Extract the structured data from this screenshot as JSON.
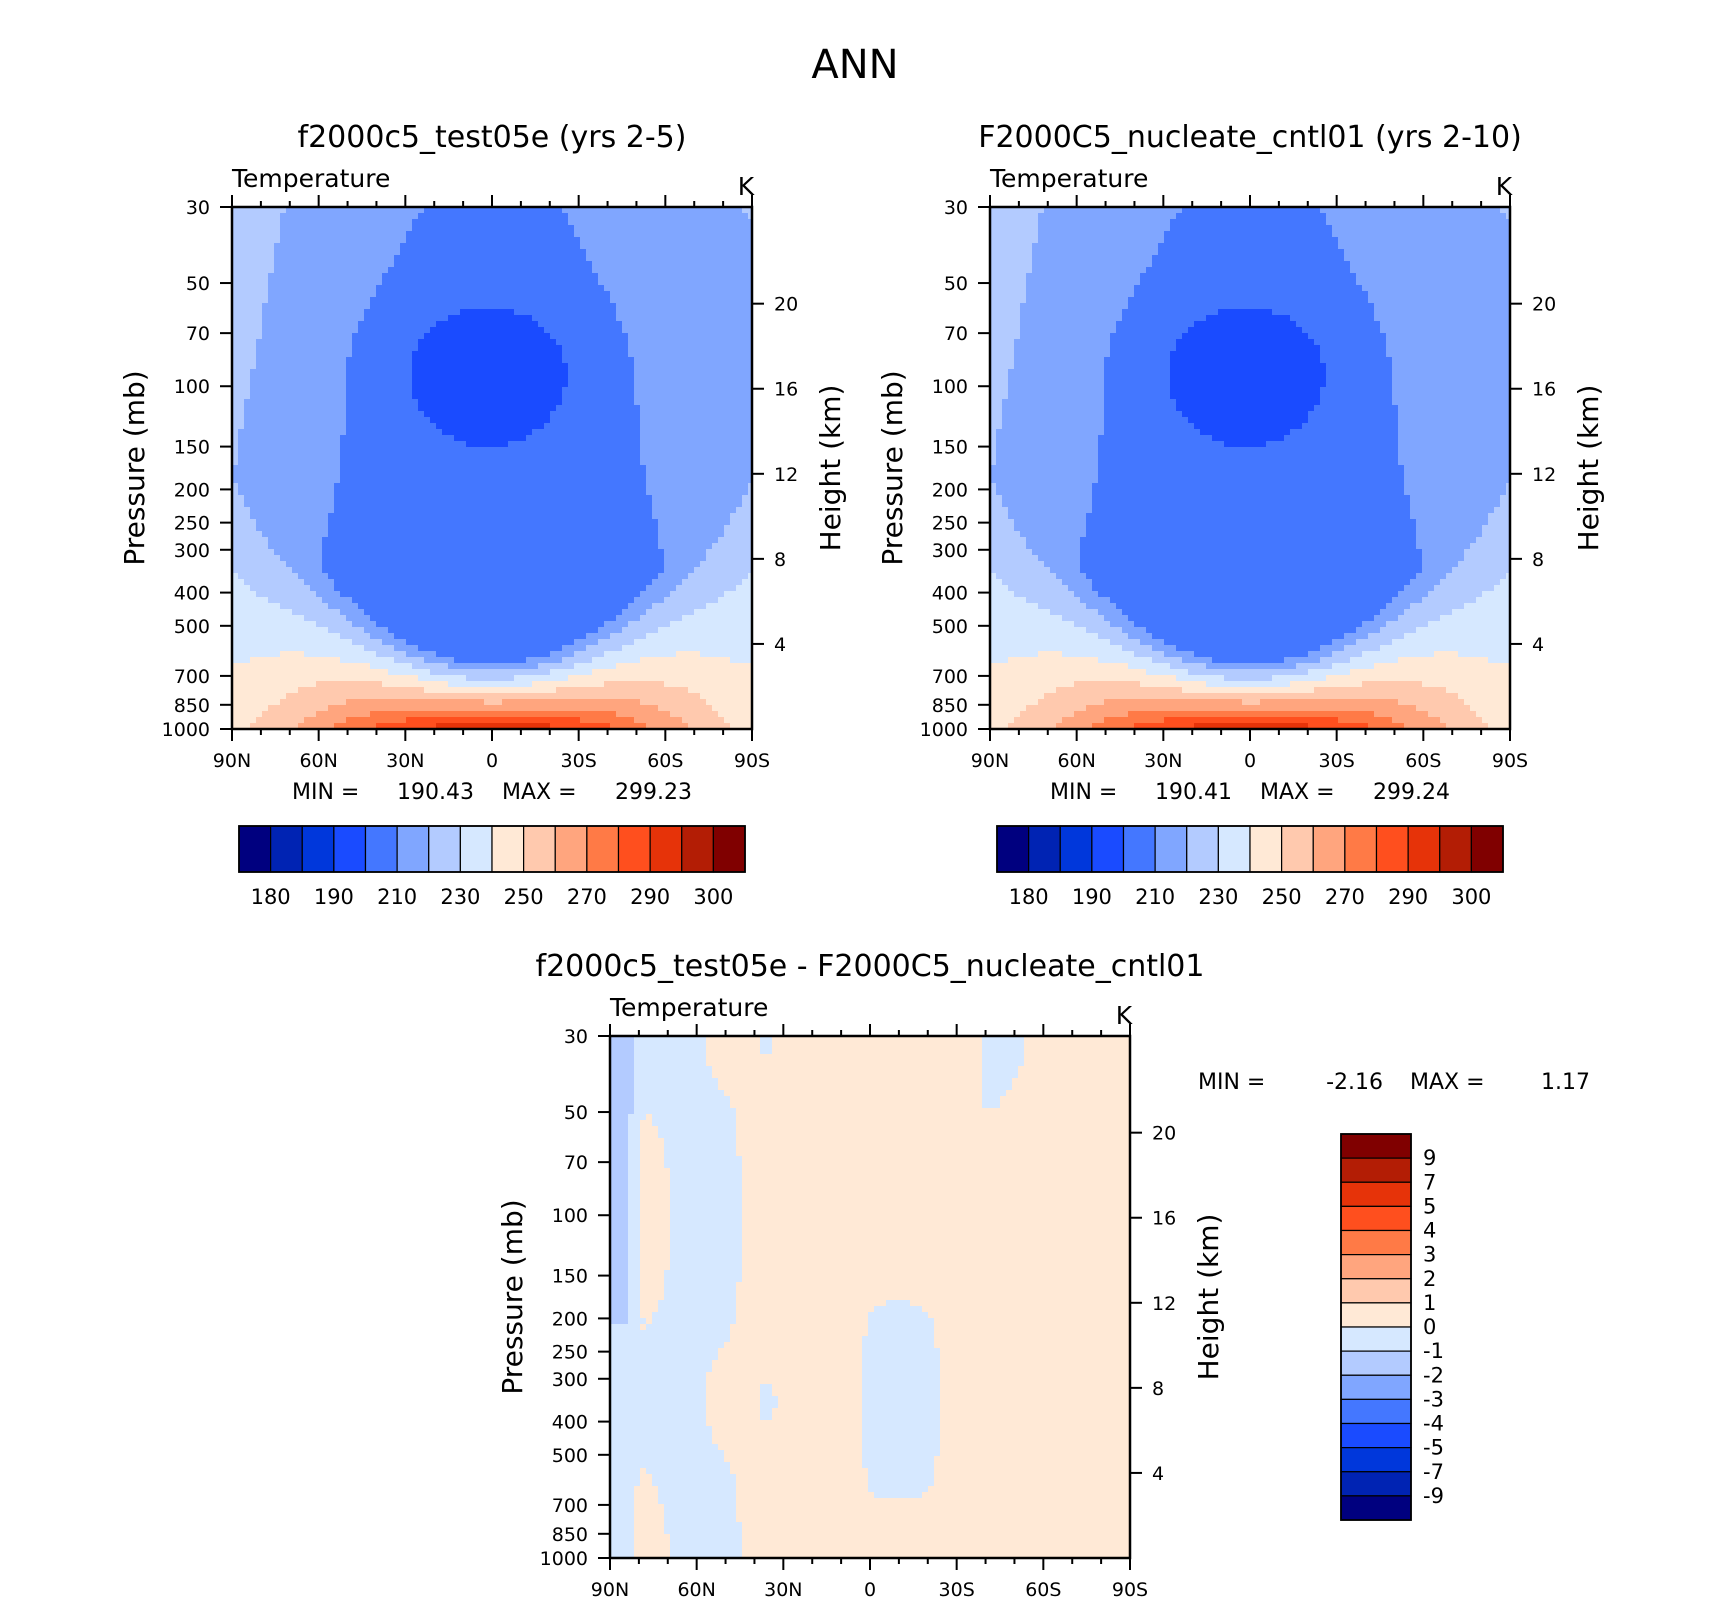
{
  "page_title": "ANN",
  "palettes": {
    "abs": [
      "#00007f",
      "#0023b3",
      "#0037db",
      "#1a4bff",
      "#4477ff",
      "#80a6ff",
      "#b3cbff",
      "#d6e8ff",
      "#ffe9d6",
      "#ffc9ae",
      "#ffa57e",
      "#ff7a46",
      "#ff4f1e",
      "#e63309",
      "#b31d05",
      "#800000"
    ],
    "diff": [
      "#00007f",
      "#0023b3",
      "#0037db",
      "#1a4bff",
      "#4477ff",
      "#80a6ff",
      "#b3cbff",
      "#d6e8ff",
      "#ffe9d6",
      "#ffc9ae",
      "#ffa57e",
      "#ff7a46",
      "#ff4f1e",
      "#e63309",
      "#b31d05",
      "#800000"
    ]
  },
  "chart_data": [
    {
      "type": "heatmap",
      "title": "f2000c5_test05e (yrs 2-5)",
      "variable": "Temperature",
      "units": "K",
      "xlabel": "",
      "ylabel": "Pressure (mb)",
      "y2label": "Height (km)",
      "x_ticks": [
        "90N",
        "60N",
        "30N",
        "0",
        "30S",
        "60S",
        "90S"
      ],
      "y_ticks": [
        30,
        50,
        70,
        100,
        150,
        200,
        250,
        300,
        400,
        500,
        700,
        850,
        1000
      ],
      "y2_ticks": [
        4,
        8,
        12,
        16,
        20
      ],
      "ylim": [
        30,
        1000
      ],
      "yscale": "log",
      "y_inverted": true,
      "stats": {
        "min_label": "MIN =",
        "min": "190.43",
        "max_label": "MAX =",
        "max": "299.23"
      },
      "colorbar": {
        "labels": [
          "180",
          "190",
          "210",
          "230",
          "250",
          "270",
          "290",
          "300"
        ],
        "orientation": "horizontal"
      },
      "levels": [
        180,
        185,
        190,
        200,
        210,
        220,
        230,
        240,
        250,
        260,
        270,
        280,
        290,
        295,
        300
      ]
    },
    {
      "type": "heatmap",
      "title": "F2000C5_nucleate_cntl01 (yrs 2-10)",
      "variable": "Temperature",
      "units": "K",
      "xlabel": "",
      "ylabel": "Pressure (mb)",
      "y2label": "Height (km)",
      "x_ticks": [
        "90N",
        "60N",
        "30N",
        "0",
        "30S",
        "60S",
        "90S"
      ],
      "y_ticks": [
        30,
        50,
        70,
        100,
        150,
        200,
        250,
        300,
        400,
        500,
        700,
        850,
        1000
      ],
      "y2_ticks": [
        4,
        8,
        12,
        16,
        20
      ],
      "ylim": [
        30,
        1000
      ],
      "yscale": "log",
      "y_inverted": true,
      "stats": {
        "min_label": "MIN =",
        "min": "190.41",
        "max_label": "MAX =",
        "max": "299.24"
      },
      "colorbar": {
        "labels": [
          "180",
          "190",
          "210",
          "230",
          "250",
          "270",
          "290",
          "300"
        ],
        "orientation": "horizontal"
      },
      "levels": [
        180,
        185,
        190,
        200,
        210,
        220,
        230,
        240,
        250,
        260,
        270,
        280,
        290,
        295,
        300
      ]
    },
    {
      "type": "heatmap",
      "title": "f2000c5_test05e - F2000C5_nucleate_cntl01",
      "variable": "Temperature",
      "units": "K",
      "xlabel": "",
      "ylabel": "Pressure (mb)",
      "y2label": "Height (km)",
      "x_ticks": [
        "90N",
        "60N",
        "30N",
        "0",
        "30S",
        "60S",
        "90S"
      ],
      "y_ticks": [
        30,
        50,
        70,
        100,
        150,
        200,
        250,
        300,
        400,
        500,
        700,
        850,
        1000
      ],
      "y2_ticks": [
        4,
        8,
        12,
        16,
        20
      ],
      "ylim": [
        30,
        1000
      ],
      "yscale": "log",
      "y_inverted": true,
      "stats": {
        "min_label": "MIN =",
        "min": "-2.16",
        "max_label": "MAX =",
        "max": "1.17"
      },
      "colorbar": {
        "labels": [
          "9",
          "7",
          "5",
          "4",
          "3",
          "2",
          "1",
          "0",
          "-1",
          "-2",
          "-3",
          "-4",
          "-5",
          "-7",
          "-9"
        ],
        "orientation": "vertical"
      },
      "levels": [
        -9,
        -7,
        -5,
        -4,
        -3,
        -2,
        -1,
        0,
        1,
        2,
        3,
        4,
        5,
        7,
        9
      ]
    }
  ]
}
